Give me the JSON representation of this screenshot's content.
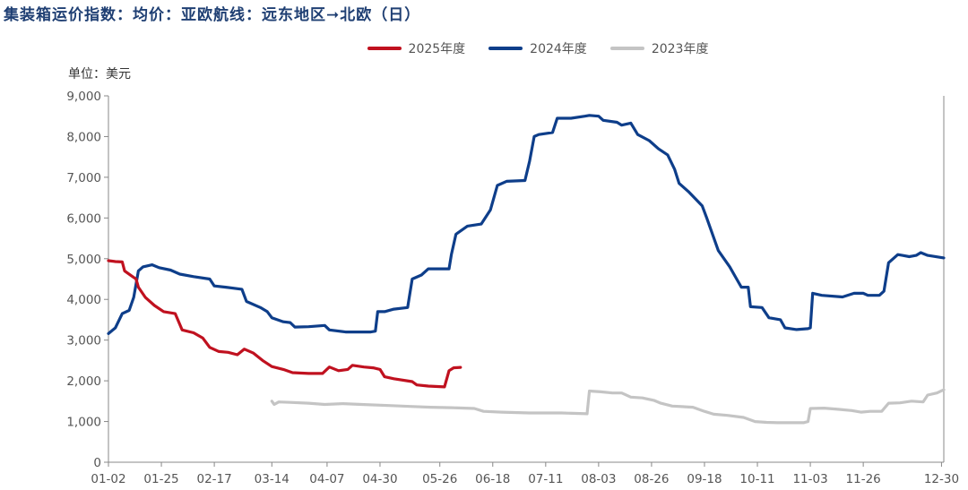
{
  "title": "集装箱运价指数：均价：亚欧航线：远东地区➞北欧（日）",
  "unit": "单位：美元",
  "colors": {
    "s2025": "#c0111f",
    "s2024": "#0e3e8a",
    "s2023": "#c4c4c4",
    "axis": "#888888"
  },
  "chart_data": {
    "type": "line",
    "title": "集装箱运价指数：均价：亚欧航线：远东地区➞北欧（日）",
    "ylabel": "单位：美元",
    "ylim": [
      0,
      9000
    ],
    "yticks": [
      "0",
      "1,000",
      "2,000",
      "3,000",
      "4,000",
      "5,000",
      "6,000",
      "7,000",
      "8,000",
      "9,000"
    ],
    "x_range_days": [
      1,
      364
    ],
    "xticks": [
      {
        "label": "01-02",
        "day": 1
      },
      {
        "label": "01-25",
        "day": 24
      },
      {
        "label": "02-17",
        "day": 47
      },
      {
        "label": "03-14",
        "day": 72
      },
      {
        "label": "04-07",
        "day": 96
      },
      {
        "label": "04-30",
        "day": 119
      },
      {
        "label": "05-26",
        "day": 145
      },
      {
        "label": "06-18",
        "day": 168
      },
      {
        "label": "07-11",
        "day": 191
      },
      {
        "label": "08-03",
        "day": 214
      },
      {
        "label": "08-26",
        "day": 237
      },
      {
        "label": "09-18",
        "day": 260
      },
      {
        "label": "10-11",
        "day": 283
      },
      {
        "label": "11-03",
        "day": 306
      },
      {
        "label": "11-26",
        "day": 329
      },
      {
        "label": "12-30",
        "day": 363
      }
    ],
    "legend_position": "top",
    "series": [
      {
        "name": "2025年度",
        "color_key": "s2025",
        "points": [
          [
            1,
            4950
          ],
          [
            4,
            4930
          ],
          [
            7,
            4920
          ],
          [
            8,
            4700
          ],
          [
            11,
            4580
          ],
          [
            13,
            4500
          ],
          [
            14,
            4300
          ],
          [
            17,
            4050
          ],
          [
            21,
            3850
          ],
          [
            25,
            3700
          ],
          [
            30,
            3650
          ],
          [
            33,
            3250
          ],
          [
            38,
            3180
          ],
          [
            42,
            3050
          ],
          [
            45,
            2820
          ],
          [
            49,
            2720
          ],
          [
            53,
            2700
          ],
          [
            57,
            2640
          ],
          [
            60,
            2780
          ],
          [
            64,
            2680
          ],
          [
            68,
            2500
          ],
          [
            72,
            2350
          ],
          [
            77,
            2280
          ],
          [
            81,
            2200
          ],
          [
            88,
            2180
          ],
          [
            94,
            2180
          ],
          [
            97,
            2340
          ],
          [
            101,
            2250
          ],
          [
            105,
            2280
          ],
          [
            107,
            2380
          ],
          [
            112,
            2340
          ],
          [
            116,
            2320
          ],
          [
            119,
            2280
          ],
          [
            121,
            2100
          ],
          [
            125,
            2050
          ],
          [
            133,
            1980
          ],
          [
            135,
            1900
          ],
          [
            140,
            1870
          ],
          [
            147,
            1850
          ],
          [
            149,
            2250
          ],
          [
            151,
            2320
          ],
          [
            154,
            2330
          ]
        ]
      },
      {
        "name": "2024年度",
        "color_key": "s2024",
        "points": [
          [
            1,
            3160
          ],
          [
            4,
            3300
          ],
          [
            7,
            3650
          ],
          [
            10,
            3730
          ],
          [
            12,
            4050
          ],
          [
            14,
            4700
          ],
          [
            16,
            4800
          ],
          [
            20,
            4850
          ],
          [
            23,
            4780
          ],
          [
            28,
            4720
          ],
          [
            32,
            4620
          ],
          [
            38,
            4560
          ],
          [
            45,
            4500
          ],
          [
            47,
            4330
          ],
          [
            52,
            4300
          ],
          [
            59,
            4250
          ],
          [
            61,
            3950
          ],
          [
            67,
            3800
          ],
          [
            70,
            3700
          ],
          [
            72,
            3550
          ],
          [
            77,
            3450
          ],
          [
            80,
            3430
          ],
          [
            82,
            3320
          ],
          [
            88,
            3330
          ],
          [
            95,
            3360
          ],
          [
            97,
            3250
          ],
          [
            104,
            3200
          ],
          [
            115,
            3200
          ],
          [
            117,
            3220
          ],
          [
            118,
            3700
          ],
          [
            121,
            3700
          ],
          [
            125,
            3760
          ],
          [
            131,
            3800
          ],
          [
            133,
            4500
          ],
          [
            137,
            4600
          ],
          [
            140,
            4750
          ],
          [
            149,
            4750
          ],
          [
            150,
            5100
          ],
          [
            152,
            5600
          ],
          [
            157,
            5800
          ],
          [
            163,
            5850
          ],
          [
            167,
            6200
          ],
          [
            170,
            6800
          ],
          [
            174,
            6900
          ],
          [
            182,
            6920
          ],
          [
            184,
            7400
          ],
          [
            186,
            8000
          ],
          [
            188,
            8050
          ],
          [
            194,
            8100
          ],
          [
            196,
            8450
          ],
          [
            202,
            8450
          ],
          [
            208,
            8500
          ],
          [
            210,
            8520
          ],
          [
            214,
            8500
          ],
          [
            216,
            8400
          ],
          [
            222,
            8350
          ],
          [
            224,
            8280
          ],
          [
            228,
            8330
          ],
          [
            231,
            8050
          ],
          [
            236,
            7900
          ],
          [
            240,
            7700
          ],
          [
            244,
            7550
          ],
          [
            247,
            7200
          ],
          [
            249,
            6850
          ],
          [
            253,
            6650
          ],
          [
            259,
            6300
          ],
          [
            261,
            6000
          ],
          [
            266,
            5200
          ],
          [
            271,
            4800
          ],
          [
            274,
            4500
          ],
          [
            276,
            4300
          ],
          [
            279,
            4300
          ],
          [
            280,
            3820
          ],
          [
            285,
            3800
          ],
          [
            288,
            3550
          ],
          [
            293,
            3500
          ],
          [
            295,
            3300
          ],
          [
            300,
            3260
          ],
          [
            305,
            3280
          ],
          [
            306,
            3300
          ],
          [
            307,
            4150
          ],
          [
            311,
            4100
          ],
          [
            320,
            4060
          ],
          [
            325,
            4150
          ],
          [
            329,
            4150
          ],
          [
            331,
            4100
          ],
          [
            336,
            4100
          ],
          [
            338,
            4200
          ],
          [
            340,
            4900
          ],
          [
            344,
            5100
          ],
          [
            346,
            5080
          ],
          [
            349,
            5050
          ],
          [
            352,
            5080
          ],
          [
            354,
            5150
          ],
          [
            357,
            5080
          ],
          [
            364,
            5020
          ]
        ]
      },
      {
        "name": "2023年度",
        "color_key": "s2023",
        "points": [
          [
            72,
            1500
          ],
          [
            73,
            1420
          ],
          [
            75,
            1480
          ],
          [
            80,
            1470
          ],
          [
            88,
            1450
          ],
          [
            95,
            1420
          ],
          [
            103,
            1440
          ],
          [
            111,
            1420
          ],
          [
            124,
            1390
          ],
          [
            132,
            1370
          ],
          [
            141,
            1350
          ],
          [
            150,
            1340
          ],
          [
            160,
            1320
          ],
          [
            164,
            1250
          ],
          [
            172,
            1230
          ],
          [
            184,
            1210
          ],
          [
            198,
            1210
          ],
          [
            209,
            1190
          ],
          [
            210,
            1750
          ],
          [
            215,
            1730
          ],
          [
            220,
            1700
          ],
          [
            224,
            1700
          ],
          [
            228,
            1600
          ],
          [
            233,
            1580
          ],
          [
            238,
            1520
          ],
          [
            241,
            1450
          ],
          [
            246,
            1380
          ],
          [
            255,
            1350
          ],
          [
            260,
            1250
          ],
          [
            264,
            1180
          ],
          [
            270,
            1150
          ],
          [
            277,
            1100
          ],
          [
            282,
            1000
          ],
          [
            287,
            980
          ],
          [
            292,
            970
          ],
          [
            303,
            970
          ],
          [
            305,
            1000
          ],
          [
            306,
            1320
          ],
          [
            312,
            1330
          ],
          [
            318,
            1300
          ],
          [
            324,
            1270
          ],
          [
            328,
            1230
          ],
          [
            332,
            1250
          ],
          [
            337,
            1250
          ],
          [
            340,
            1450
          ],
          [
            345,
            1460
          ],
          [
            350,
            1500
          ],
          [
            355,
            1480
          ],
          [
            357,
            1650
          ],
          [
            361,
            1700
          ],
          [
            364,
            1780
          ]
        ]
      }
    ]
  }
}
